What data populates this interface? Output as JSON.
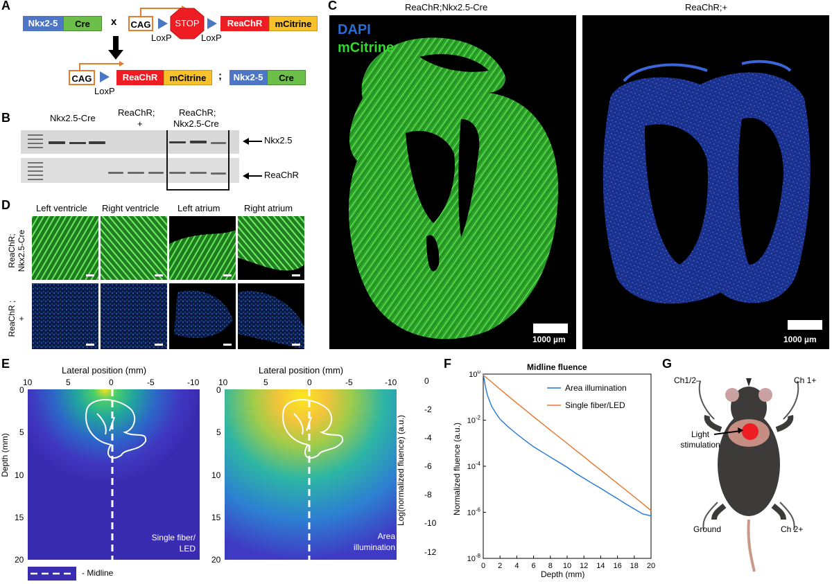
{
  "panels": {
    "A": "A",
    "B": "B",
    "C": "C",
    "D": "D",
    "E": "E",
    "F": "F",
    "G": "G"
  },
  "panelA": {
    "top": {
      "nkx": "Nkx2-5",
      "cre": "Cre",
      "cross": "x",
      "cag": "CAG",
      "stop": "STOP",
      "rea": "ReaChR",
      "mcit": "mCitrine",
      "loxp1": "LoxP",
      "loxp2": "LoxP"
    },
    "bottom": {
      "cag": "CAG",
      "rea": "ReaChR",
      "mcit": "mCitrine",
      "sep": ";",
      "nkx": "Nkx2-5",
      "cre": "Cre",
      "loxp": "LoxP"
    }
  },
  "panelB": {
    "headers": [
      "Nkx2.5-Cre",
      "ReaChR;",
      "+",
      "ReaChR;",
      "Nkx2.5-Cre"
    ],
    "arrows": [
      "Nkx2.5",
      "ReaChR"
    ]
  },
  "panelC": {
    "left_title": "ReaChR;Nkx2.5-Cre",
    "right_title": "ReaChR;+",
    "legend_dapi": "DAPI",
    "legend_mcit": "mCitrine",
    "scale_left": "1000 µm",
    "scale_right": "1000 µm",
    "colors": {
      "dapi": "#2a6cd6",
      "mcitrine": "#35d42e",
      "background": "#000000"
    }
  },
  "panelD": {
    "columns": [
      "Left ventricle",
      "Right ventricle",
      "Left atrium",
      "Right atrium"
    ],
    "row1": [
      "ReaChR;",
      "Nkx2.5-Cre"
    ],
    "row2": [
      "ReaChR ;",
      "+"
    ]
  },
  "panelE": {
    "xlabel": "Lateral position (mm)",
    "ylabel": "Depth (mm)",
    "xticks": [
      "10",
      "5",
      "0",
      "-5",
      "-10"
    ],
    "yticks": [
      "0",
      "5",
      "10",
      "15",
      "20"
    ],
    "left_label": [
      "Single fiber/",
      "LED"
    ],
    "right_label": [
      "Area",
      "illumination"
    ],
    "colorbar_label": "Log(normalized fluence) (a.u.)",
    "colorbar_ticks": [
      "0",
      "-2",
      "-4",
      "-6",
      "-8",
      "-10",
      "-12"
    ],
    "midline_label": "- Midline"
  },
  "panelG": {
    "ch12": "Ch1/2–",
    "ch1p": "Ch 1+",
    "light": [
      "Light",
      "stimulation"
    ],
    "ground": "Ground",
    "ch2p": "Ch 2+"
  },
  "chart_data": {
    "type": "line",
    "title": "Midline fluence",
    "xlabel": "Depth (mm)",
    "ylabel": "Normalized fluence (a.u.)",
    "xlim": [
      0,
      20
    ],
    "ylim": [
      1e-08,
      1
    ],
    "yscale": "log",
    "xticks": [
      "0",
      "2",
      "4",
      "6",
      "8",
      "10",
      "12",
      "14",
      "16",
      "18",
      "20"
    ],
    "yticks": [
      {
        "base": "10",
        "exp": "0"
      },
      {
        "base": "10",
        "exp": "-2"
      },
      {
        "base": "10",
        "exp": "-4"
      },
      {
        "base": "10",
        "exp": "-6"
      },
      {
        "base": "10",
        "exp": "-8"
      }
    ],
    "legend_position": "top-right",
    "series": [
      {
        "name": "Area illumination",
        "color": "#1f77d4",
        "x": [
          0,
          0.25,
          0.5,
          1,
          1.5,
          2,
          3,
          4,
          5,
          6,
          7,
          8,
          9,
          10,
          11,
          12,
          13,
          14,
          15,
          16,
          17,
          18,
          19,
          20
        ],
        "y": [
          1,
          0.3,
          0.12,
          0.04,
          0.02,
          0.011,
          0.005,
          0.0025,
          0.0013,
          0.0007,
          0.00042,
          0.00025,
          0.00015,
          9e-05,
          5e-05,
          3e-05,
          1.8e-05,
          1.1e-05,
          6.5e-06,
          3.9e-06,
          2.3e-06,
          1.4e-06,
          8.5e-07,
          7e-07
        ]
      },
      {
        "name": "Single fiber/LED",
        "color": "#e8732a",
        "x": [
          0,
          1,
          2,
          3,
          4,
          5,
          6,
          7,
          8,
          9,
          10,
          11,
          12,
          13,
          14,
          15,
          16,
          17,
          18,
          19,
          20
        ],
        "y": [
          0.9,
          0.45,
          0.22,
          0.11,
          0.055,
          0.028,
          0.014,
          0.0072,
          0.0037,
          0.0019,
          0.00098,
          0.0005,
          0.00026,
          0.00013,
          6.8e-05,
          3.5e-05,
          1.8e-05,
          9.2e-06,
          4.7e-06,
          2.4e-06,
          1.2e-06
        ]
      }
    ]
  }
}
